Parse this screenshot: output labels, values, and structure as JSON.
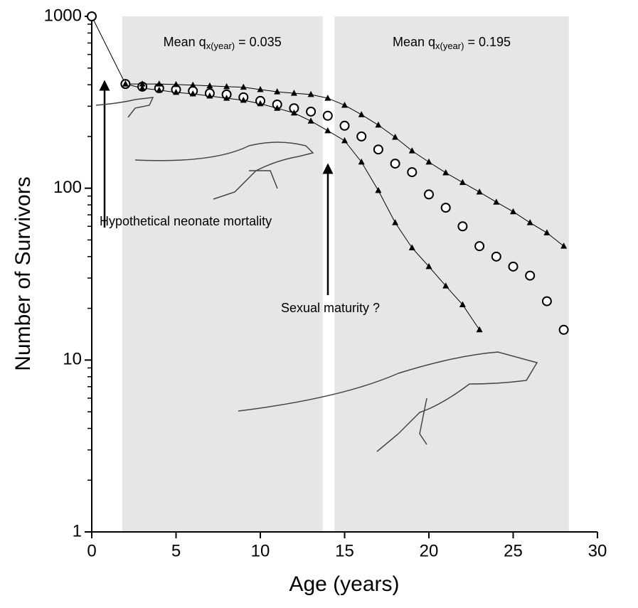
{
  "chart_data": {
    "type": "scatter",
    "xlabel": "Age (years)",
    "ylabel": "Number of Survivors",
    "xlim": [
      0,
      30
    ],
    "xticks": [
      0,
      5,
      10,
      15,
      20,
      25,
      30
    ],
    "ylim": [
      1,
      1000
    ],
    "yticks": [
      1,
      10,
      100,
      1000
    ],
    "log_y": true,
    "x": [
      0,
      1,
      2,
      3,
      4,
      5,
      6,
      7,
      8,
      9,
      10,
      11,
      12,
      13,
      14,
      15,
      16,
      17,
      18,
      19,
      20,
      21,
      22,
      23,
      24,
      25,
      26,
      27,
      28
    ],
    "series": [
      {
        "marker": "circle",
        "color": "#000000",
        "values": [
          1000,
          null,
          404,
          390,
          382,
          375,
          368,
          357,
          351,
          338,
          322,
          307,
          292,
          279,
          264,
          231,
          200,
          168,
          139,
          124,
          92,
          77,
          60,
          46,
          40,
          35,
          31,
          22,
          15
        ]
      },
      {
        "marker": "triangle",
        "color": "#000000",
        "values": [
          null,
          null,
          404,
          404,
          404,
          401,
          398,
          394,
          390,
          387,
          375,
          364,
          357,
          351,
          334,
          304,
          268,
          233,
          198,
          165,
          142,
          123,
          108,
          95,
          83,
          73,
          63,
          55,
          46
        ]
      },
      {
        "marker": "triangle",
        "color": "#000000",
        "values": [
          null,
          null,
          404,
          382,
          372,
          361,
          354,
          344,
          334,
          325,
          310,
          292,
          274,
          246,
          216,
          189,
          142,
          97,
          63,
          45,
          35,
          27,
          21,
          15,
          null,
          null,
          null,
          null,
          null
        ]
      }
    ],
    "shaded_spans": [
      [
        1.8,
        13.7
      ],
      [
        14.4,
        28.3
      ]
    ],
    "span_labels": [
      {
        "prefix": "Mean q",
        "subscript": "x(year)",
        "suffix": " = 0.035"
      },
      {
        "prefix": "Mean q",
        "subscript": "x(year)",
        "suffix": " = 0.195"
      }
    ],
    "annotations": [
      "Hypothetical neonate mortality",
      "Sexual maturity ?"
    ]
  }
}
